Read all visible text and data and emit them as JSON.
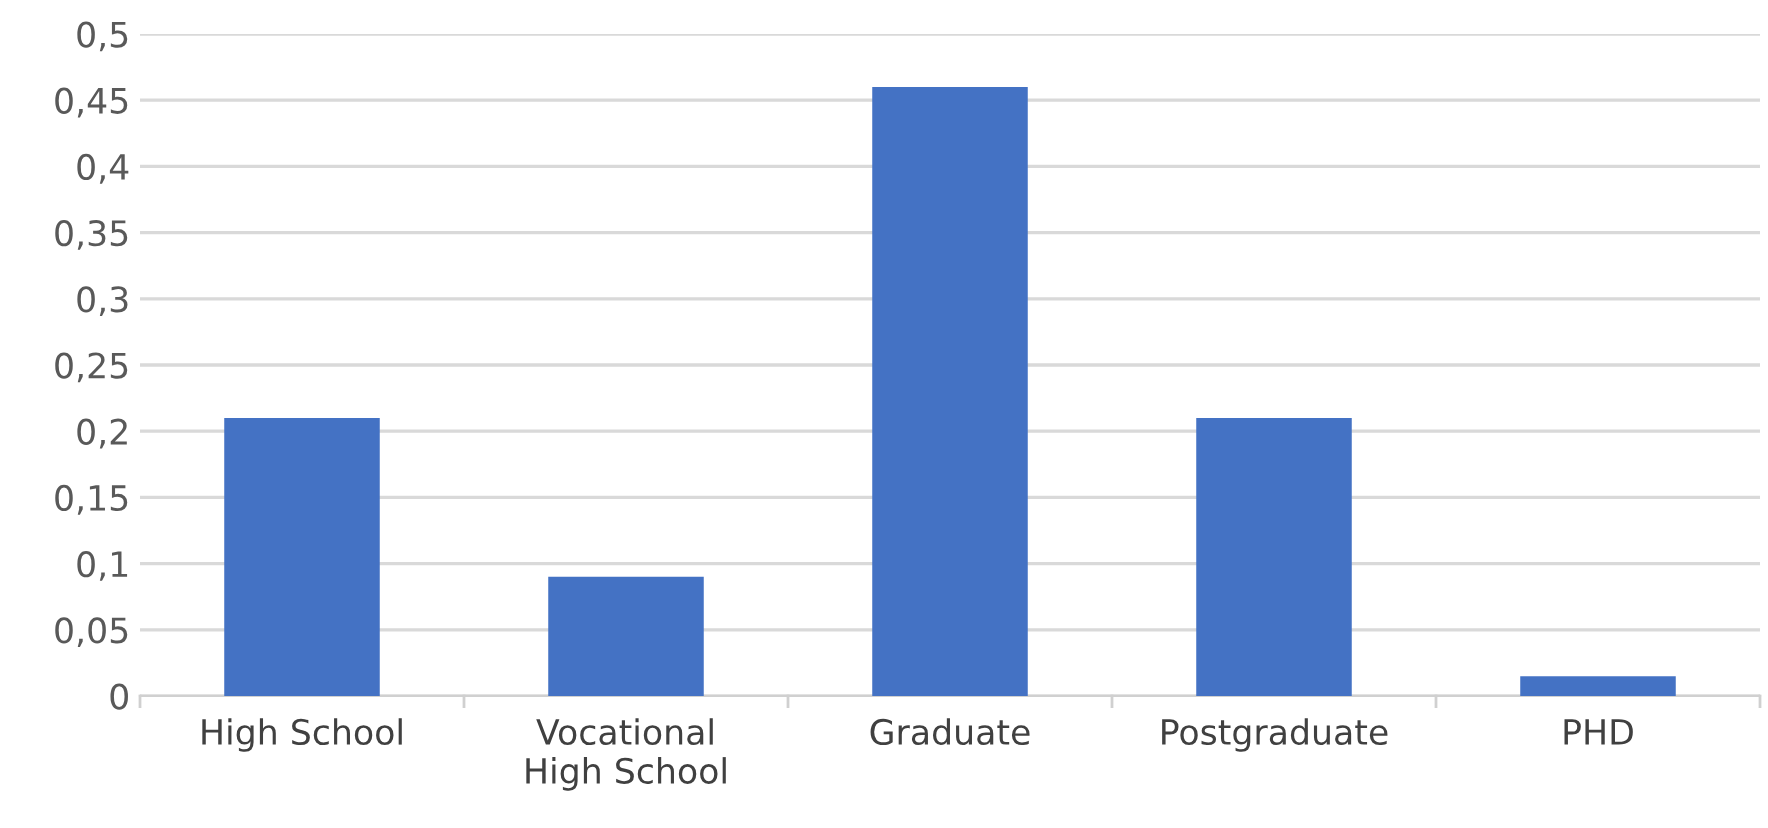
{
  "chart_data": {
    "type": "bar",
    "categories": [
      "High School",
      "Vocational\nHigh School",
      "Graduate",
      "Postgraduate",
      "PHD"
    ],
    "values": [
      0.21,
      0.09,
      0.46,
      0.21,
      0.015
    ],
    "color": "#4472c4",
    "ylim": [
      0,
      0.5
    ],
    "yticks": [
      0,
      {
        "value": 0.05,
        "label": "0,05"
      },
      {
        "value": 0.1,
        "label": "0,1"
      },
      {
        "value": 0.15,
        "label": "0,15"
      },
      {
        "value": 0.2,
        "label": "0,2"
      },
      {
        "value": 0.25,
        "label": "0,25"
      },
      {
        "value": 0.3,
        "label": "0,3"
      },
      {
        "value": 0.35,
        "label": "0,35"
      },
      {
        "value": 0.4,
        "label": "0,4"
      },
      {
        "value": 0.45,
        "label": "0,45"
      },
      {
        "value": 0.5,
        "label": "0,5"
      }
    ],
    "grid": "y"
  }
}
